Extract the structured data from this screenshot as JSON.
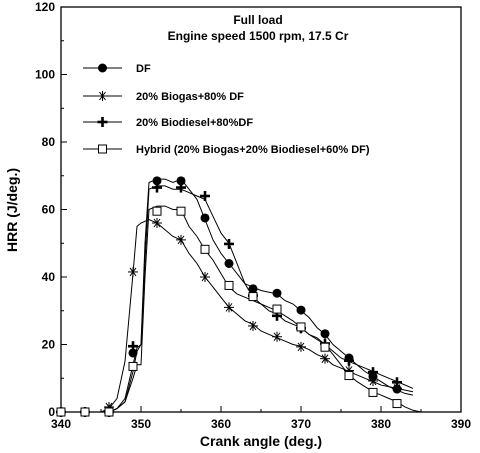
{
  "chart_data": {
    "type": "line",
    "title": "Full load",
    "subtitle": "Engine speed 1500 rpm, 17.5 Cr",
    "xlabel": "Crank angle (deg.)",
    "ylabel": "HRR (J/deg.)",
    "xlim": [
      340,
      390
    ],
    "ylim": [
      0,
      120
    ],
    "xticks": [
      340,
      350,
      360,
      370,
      380,
      390
    ],
    "yticks": [
      0,
      20,
      40,
      60,
      80,
      100,
      120
    ],
    "grid": false,
    "legend_position": "top-left",
    "series": [
      {
        "name": "DF",
        "marker": "filled-circle",
        "color": "#000000",
        "line": [
          [
            340,
            0
          ],
          [
            343,
            0
          ],
          [
            346,
            0
          ],
          [
            347,
            1
          ],
          [
            348,
            3
          ],
          [
            349,
            12
          ],
          [
            349.5,
            18
          ],
          [
            350,
            20
          ],
          [
            350.5,
            50
          ],
          [
            351,
            68
          ],
          [
            352,
            69
          ],
          [
            353,
            69
          ],
          [
            354,
            68
          ],
          [
            355,
            69
          ],
          [
            356,
            66
          ],
          [
            357,
            63
          ],
          [
            358,
            57
          ],
          [
            359,
            51
          ],
          [
            360,
            47
          ],
          [
            361,
            44
          ],
          [
            362,
            41
          ],
          [
            363,
            38
          ],
          [
            364,
            37
          ],
          [
            365,
            36
          ],
          [
            366,
            35.5
          ],
          [
            367,
            35
          ],
          [
            368,
            33
          ],
          [
            369,
            32
          ],
          [
            370,
            30
          ],
          [
            371,
            28
          ],
          [
            372,
            25
          ],
          [
            373,
            23
          ],
          [
            374,
            20
          ],
          [
            375,
            18
          ],
          [
            376,
            16
          ],
          [
            377,
            14
          ],
          [
            378,
            12
          ],
          [
            379,
            10.5
          ],
          [
            380,
            9
          ],
          [
            381,
            7.5
          ],
          [
            382,
            6.5
          ],
          [
            383,
            5.5
          ],
          [
            384,
            5
          ]
        ],
        "markers": [
          [
            340,
            0
          ],
          [
            343,
            0
          ],
          [
            346,
            0
          ],
          [
            349,
            17.5
          ],
          [
            352,
            68.5
          ],
          [
            355,
            68.5
          ],
          [
            358,
            57.5
          ],
          [
            361,
            44
          ],
          [
            364,
            36.5
          ],
          [
            367,
            35.2
          ],
          [
            370,
            30.2
          ],
          [
            373,
            23.2
          ],
          [
            376,
            16
          ],
          [
            379,
            10.5
          ],
          [
            382,
            6.8
          ]
        ]
      },
      {
        "name": "20% Biogas+80% DF",
        "marker": "asterisk",
        "color": "#000000",
        "line": [
          [
            340,
            0
          ],
          [
            343,
            0
          ],
          [
            345,
            0
          ],
          [
            346,
            1
          ],
          [
            347,
            4
          ],
          [
            348,
            15
          ],
          [
            349,
            41
          ],
          [
            349.5,
            55
          ],
          [
            350,
            56
          ],
          [
            351,
            57
          ],
          [
            352,
            56
          ],
          [
            353,
            54
          ],
          [
            354,
            52
          ],
          [
            355,
            51
          ],
          [
            356,
            47
          ],
          [
            357,
            44
          ],
          [
            358,
            40
          ],
          [
            359,
            37
          ],
          [
            360,
            34
          ],
          [
            361,
            31
          ],
          [
            362,
            29
          ],
          [
            363,
            27
          ],
          [
            364,
            26
          ],
          [
            365,
            24
          ],
          [
            366,
            23
          ],
          [
            367,
            22
          ],
          [
            368,
            21
          ],
          [
            369,
            20
          ],
          [
            370,
            19.5
          ],
          [
            371,
            18.5
          ],
          [
            372,
            17
          ],
          [
            373,
            16
          ],
          [
            374,
            14
          ],
          [
            375,
            13
          ],
          [
            376,
            12
          ],
          [
            377,
            11
          ],
          [
            378,
            10
          ],
          [
            379,
            9
          ],
          [
            380,
            8
          ],
          [
            381,
            7.5
          ],
          [
            382,
            7
          ],
          [
            383,
            6.5
          ],
          [
            384,
            6
          ]
        ],
        "markers": [
          [
            340,
            0
          ],
          [
            343,
            0
          ],
          [
            346,
            1.5
          ],
          [
            349,
            41.5
          ],
          [
            352,
            56
          ],
          [
            355,
            51
          ],
          [
            358,
            40
          ],
          [
            361,
            31
          ],
          [
            364,
            25.5
          ],
          [
            367,
            22.3
          ],
          [
            370,
            19.3
          ],
          [
            373,
            15.8
          ],
          [
            376,
            12.3
          ],
          [
            379,
            9.2
          ],
          [
            382,
            7
          ]
        ]
      },
      {
        "name": "20% Biodiesel+80%DF",
        "marker": "plus",
        "color": "#000000",
        "line": [
          [
            340,
            0
          ],
          [
            343,
            0
          ],
          [
            346,
            0
          ],
          [
            347,
            1
          ],
          [
            348,
            4
          ],
          [
            349,
            14
          ],
          [
            349.5,
            19
          ],
          [
            350,
            20
          ],
          [
            350.5,
            45
          ],
          [
            351,
            66
          ],
          [
            352,
            67
          ],
          [
            353,
            67
          ],
          [
            354,
            66
          ],
          [
            355,
            66
          ],
          [
            356,
            65
          ],
          [
            357,
            64
          ],
          [
            358,
            63
          ],
          [
            359,
            58
          ],
          [
            360,
            53
          ],
          [
            361,
            50
          ],
          [
            362,
            44
          ],
          [
            363,
            38
          ],
          [
            364,
            34
          ],
          [
            365,
            32
          ],
          [
            366,
            30
          ],
          [
            367,
            29
          ],
          [
            368,
            27
          ],
          [
            369,
            26
          ],
          [
            370,
            25
          ],
          [
            371,
            23
          ],
          [
            372,
            22
          ],
          [
            373,
            20
          ],
          [
            374,
            18
          ],
          [
            375,
            16
          ],
          [
            376,
            15
          ],
          [
            377,
            14
          ],
          [
            378,
            13
          ],
          [
            379,
            12
          ],
          [
            380,
            11
          ],
          [
            381,
            10
          ],
          [
            382,
            9
          ],
          [
            383,
            8
          ],
          [
            384,
            7
          ]
        ],
        "markers": [
          [
            340,
            0
          ],
          [
            343,
            0
          ],
          [
            346,
            0
          ],
          [
            349,
            19.5
          ],
          [
            352,
            66.5
          ],
          [
            355,
            66.5
          ],
          [
            358,
            64
          ],
          [
            361,
            49.8
          ],
          [
            364,
            34.5
          ],
          [
            367,
            28.5
          ],
          [
            370,
            24.8
          ],
          [
            373,
            20.3
          ],
          [
            376,
            15.2
          ],
          [
            379,
            11.8
          ],
          [
            382,
            8.8
          ]
        ]
      },
      {
        "name": "Hybrid (20% Biogas+20% Biodiesel+60% DF)",
        "marker": "open-square",
        "color": "#000000",
        "line": [
          [
            340,
            0
          ],
          [
            343,
            0
          ],
          [
            346,
            0
          ],
          [
            347,
            1
          ],
          [
            348,
            3
          ],
          [
            349,
            10
          ],
          [
            349.5,
            14
          ],
          [
            350,
            14
          ],
          [
            350.5,
            40
          ],
          [
            351,
            60
          ],
          [
            352,
            61
          ],
          [
            353,
            61
          ],
          [
            354,
            60
          ],
          [
            355,
            60
          ],
          [
            356,
            55
          ],
          [
            357,
            52
          ],
          [
            358,
            48
          ],
          [
            359,
            45
          ],
          [
            360,
            41
          ],
          [
            361,
            37
          ],
          [
            362,
            35
          ],
          [
            363,
            34
          ],
          [
            364,
            33
          ],
          [
            365,
            32
          ],
          [
            366,
            31
          ],
          [
            367,
            30
          ],
          [
            368,
            28.5
          ],
          [
            369,
            27
          ],
          [
            370,
            25
          ],
          [
            371,
            23
          ],
          [
            372,
            21.5
          ],
          [
            373,
            20
          ],
          [
            374,
            17
          ],
          [
            375,
            14
          ],
          [
            376,
            11
          ],
          [
            377,
            9
          ],
          [
            378,
            7.5
          ],
          [
            379,
            6
          ],
          [
            380,
            5
          ],
          [
            381,
            4
          ],
          [
            382,
            3
          ],
          [
            383,
            1.5
          ],
          [
            384,
            0.5
          ],
          [
            385,
            0
          ]
        ],
        "markers": [
          [
            340,
            0
          ],
          [
            343,
            0
          ],
          [
            346,
            0
          ],
          [
            349,
            13.5
          ],
          [
            352,
            59.5
          ],
          [
            355,
            59.5
          ],
          [
            358,
            48.2
          ],
          [
            361,
            37.5
          ],
          [
            364,
            34.2
          ],
          [
            367,
            30.5
          ],
          [
            370,
            25.2
          ],
          [
            373,
            19.2
          ],
          [
            376,
            10.8
          ],
          [
            379,
            5.8
          ],
          [
            382,
            2.5
          ]
        ]
      }
    ]
  }
}
